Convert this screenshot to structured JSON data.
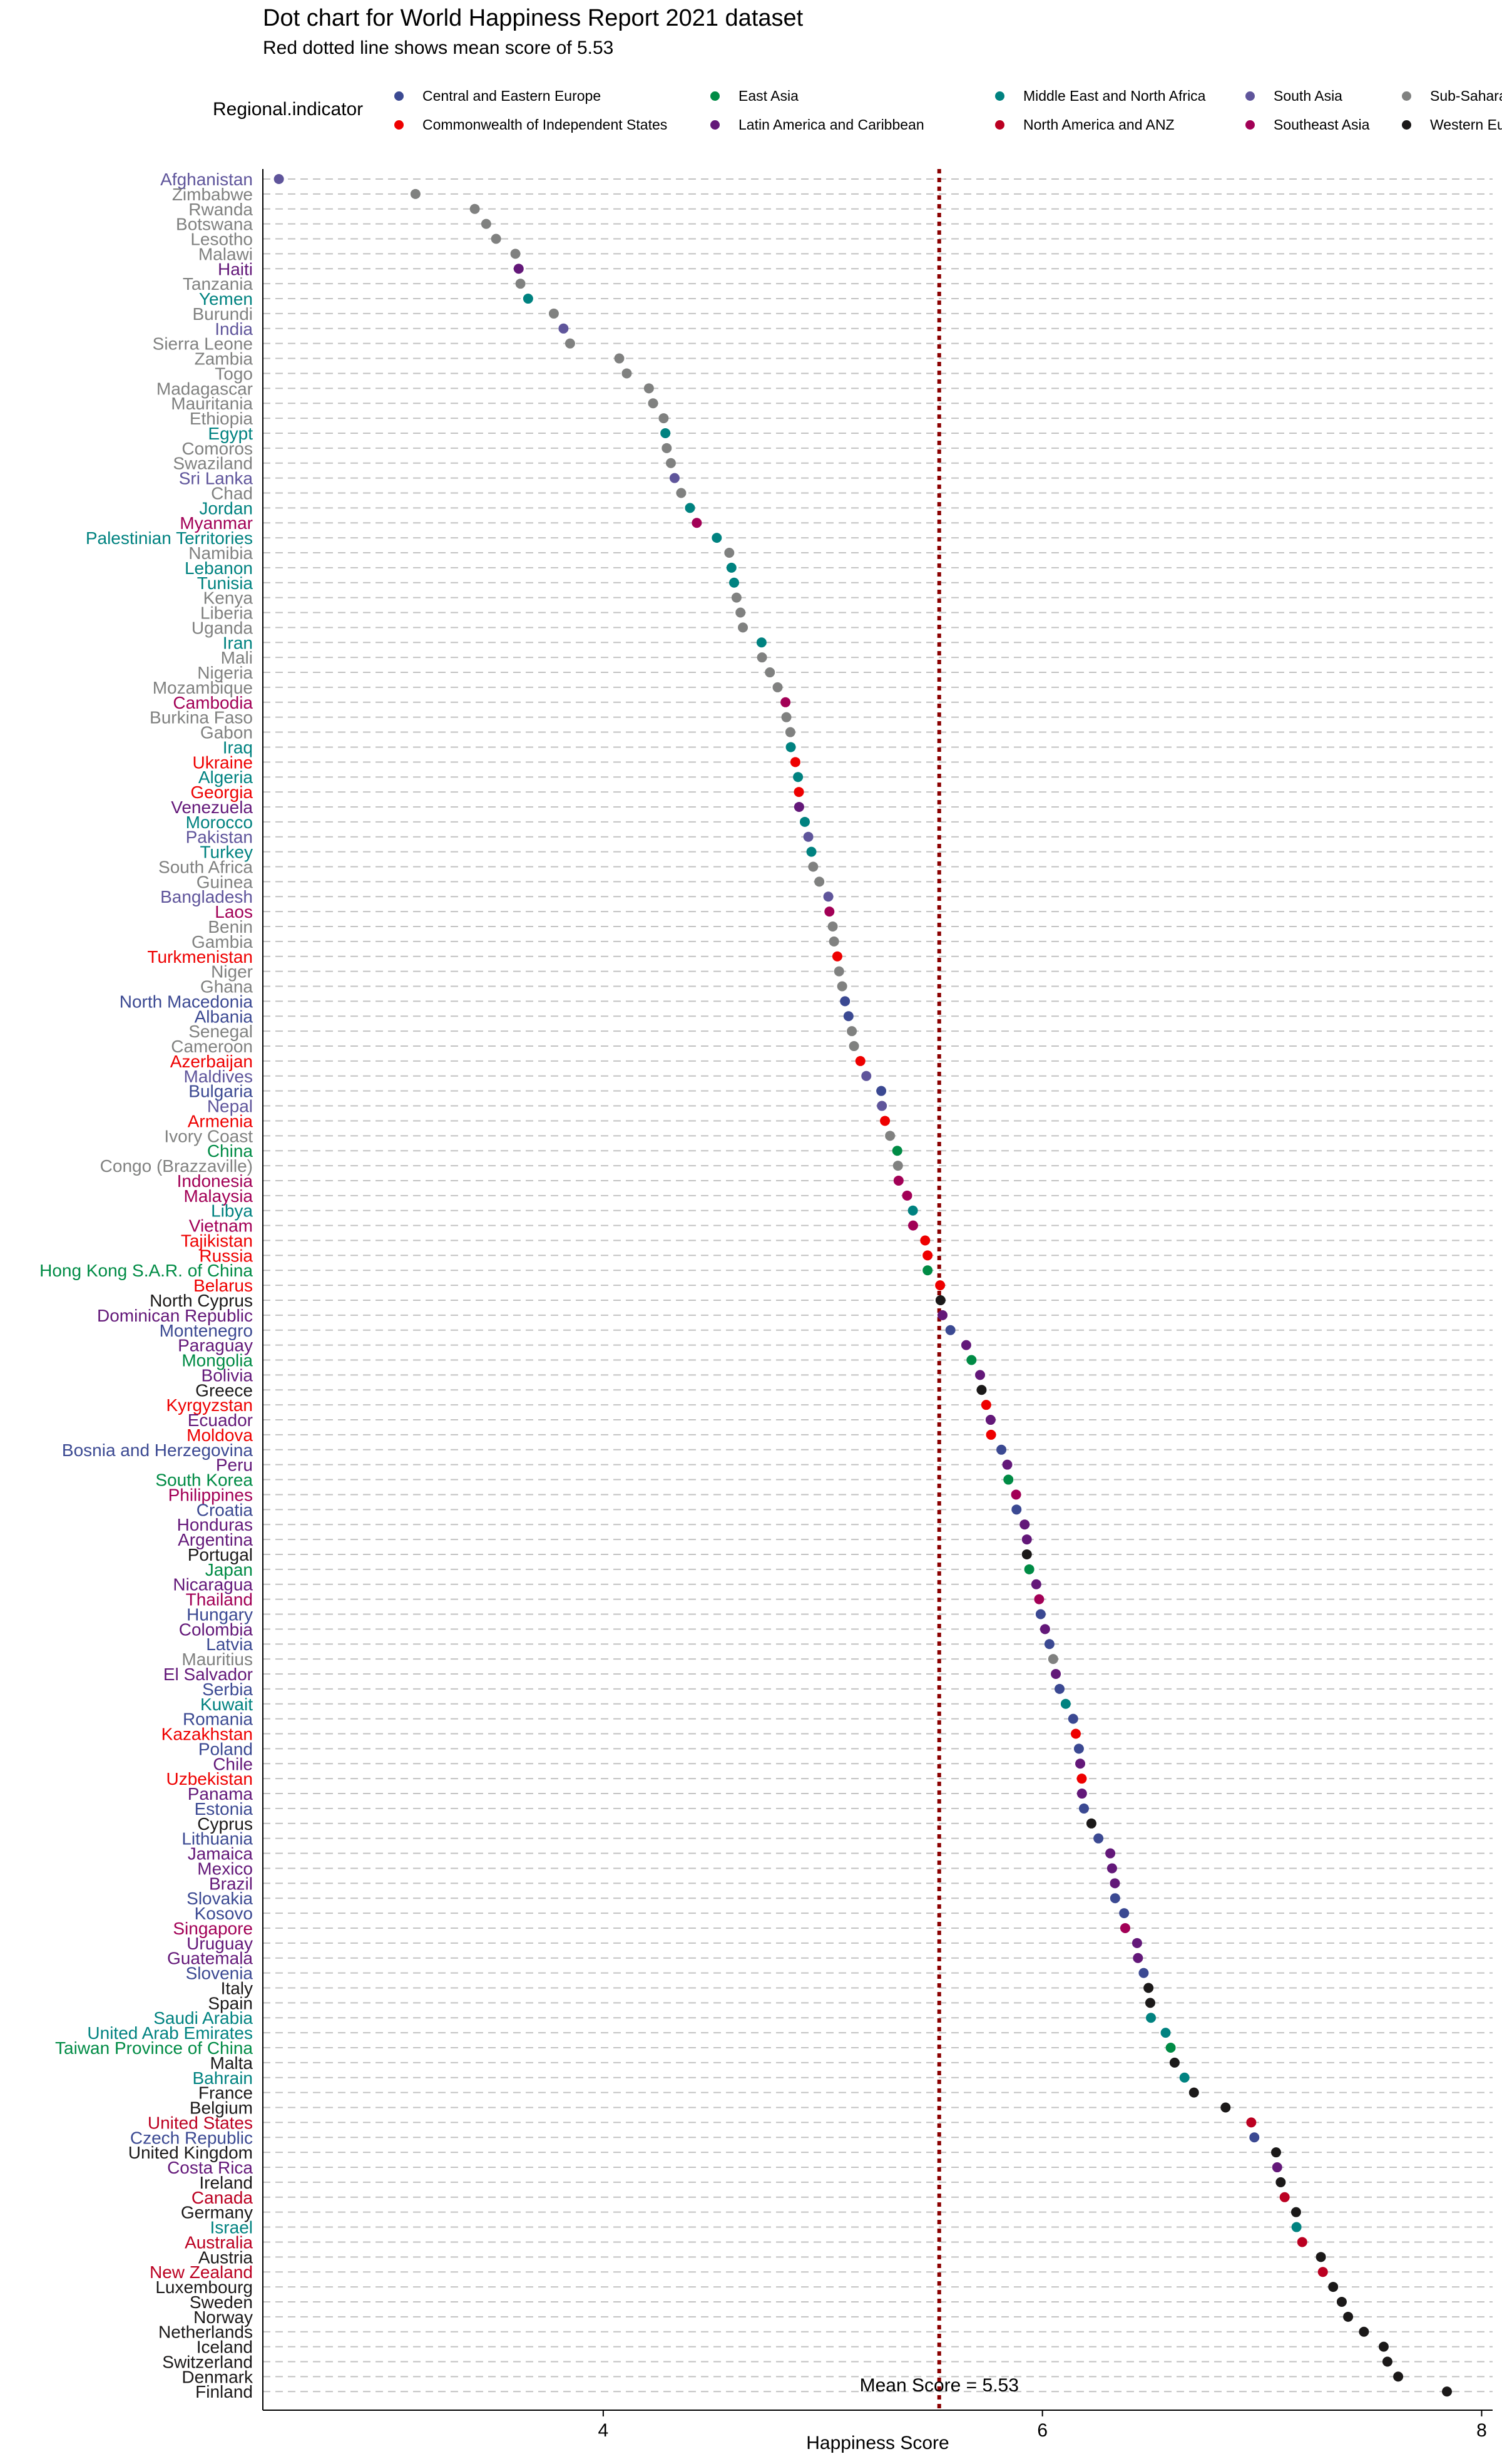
{
  "chart_data": {
    "type": "scatter",
    "title": "Dot chart for World Happiness Report 2021 dataset",
    "subtitle": "Red dotted line shows mean score of 5.53",
    "xlabel": "Happiness Score",
    "ylabel": "",
    "xlim": [
      2.45,
      8.05
    ],
    "xticks": [
      4,
      6,
      8
    ],
    "mean_value": 5.53,
    "mean_label": "Mean Score = 5.53",
    "legend_title": "Regional.indicator",
    "legend": [
      {
        "region": "Central and Eastern Europe",
        "color": "#3B4992"
      },
      {
        "region": "Commonwealth of Independent States",
        "color": "#EE0000"
      },
      {
        "region": "East Asia",
        "color": "#008B45"
      },
      {
        "region": "Latin America and Caribbean",
        "color": "#631879"
      },
      {
        "region": "Middle East and North Africa",
        "color": "#008280"
      },
      {
        "region": "North America and ANZ",
        "color": "#BB0021"
      },
      {
        "region": "South Asia",
        "color": "#5F559B"
      },
      {
        "region": "Southeast Asia",
        "color": "#A20056"
      },
      {
        "region": "Sub-Saharan Africa",
        "color": "#808180"
      },
      {
        "region": "Western Europe",
        "color": "#1B1919"
      }
    ],
    "points": [
      {
        "country": "Finland",
        "score": 7.842,
        "region": "Western Europe"
      },
      {
        "country": "Denmark",
        "score": 7.62,
        "region": "Western Europe"
      },
      {
        "country": "Switzerland",
        "score": 7.571,
        "region": "Western Europe"
      },
      {
        "country": "Iceland",
        "score": 7.554,
        "region": "Western Europe"
      },
      {
        "country": "Netherlands",
        "score": 7.464,
        "region": "Western Europe"
      },
      {
        "country": "Norway",
        "score": 7.392,
        "region": "Western Europe"
      },
      {
        "country": "Sweden",
        "score": 7.363,
        "region": "Western Europe"
      },
      {
        "country": "Luxembourg",
        "score": 7.324,
        "region": "Western Europe"
      },
      {
        "country": "New Zealand",
        "score": 7.277,
        "region": "North America and ANZ"
      },
      {
        "country": "Austria",
        "score": 7.268,
        "region": "Western Europe"
      },
      {
        "country": "Australia",
        "score": 7.183,
        "region": "North America and ANZ"
      },
      {
        "country": "Israel",
        "score": 7.157,
        "region": "Middle East and North Africa"
      },
      {
        "country": "Germany",
        "score": 7.155,
        "region": "Western Europe"
      },
      {
        "country": "Canada",
        "score": 7.103,
        "region": "North America and ANZ"
      },
      {
        "country": "Ireland",
        "score": 7.085,
        "region": "Western Europe"
      },
      {
        "country": "Costa Rica",
        "score": 7.069,
        "region": "Latin America and Caribbean"
      },
      {
        "country": "United Kingdom",
        "score": 7.064,
        "region": "Western Europe"
      },
      {
        "country": "Czech Republic",
        "score": 6.965,
        "region": "Central and Eastern Europe"
      },
      {
        "country": "United States",
        "score": 6.951,
        "region": "North America and ANZ"
      },
      {
        "country": "Belgium",
        "score": 6.834,
        "region": "Western Europe"
      },
      {
        "country": "France",
        "score": 6.69,
        "region": "Western Europe"
      },
      {
        "country": "Bahrain",
        "score": 6.647,
        "region": "Middle East and North Africa"
      },
      {
        "country": "Malta",
        "score": 6.602,
        "region": "Western Europe"
      },
      {
        "country": "Taiwan Province of China",
        "score": 6.584,
        "region": "East Asia"
      },
      {
        "country": "United Arab Emirates",
        "score": 6.561,
        "region": "Middle East and North Africa"
      },
      {
        "country": "Saudi Arabia",
        "score": 6.494,
        "region": "Middle East and North Africa"
      },
      {
        "country": "Spain",
        "score": 6.491,
        "region": "Western Europe"
      },
      {
        "country": "Italy",
        "score": 6.483,
        "region": "Western Europe"
      },
      {
        "country": "Slovenia",
        "score": 6.461,
        "region": "Central and Eastern Europe"
      },
      {
        "country": "Guatemala",
        "score": 6.435,
        "region": "Latin America and Caribbean"
      },
      {
        "country": "Uruguay",
        "score": 6.431,
        "region": "Latin America and Caribbean"
      },
      {
        "country": "Singapore",
        "score": 6.377,
        "region": "Southeast Asia"
      },
      {
        "country": "Kosovo",
        "score": 6.372,
        "region": "Central and Eastern Europe"
      },
      {
        "country": "Slovakia",
        "score": 6.331,
        "region": "Central and Eastern Europe"
      },
      {
        "country": "Brazil",
        "score": 6.33,
        "region": "Latin America and Caribbean"
      },
      {
        "country": "Mexico",
        "score": 6.317,
        "region": "Latin America and Caribbean"
      },
      {
        "country": "Jamaica",
        "score": 6.309,
        "region": "Latin America and Caribbean"
      },
      {
        "country": "Lithuania",
        "score": 6.255,
        "region": "Central and Eastern Europe"
      },
      {
        "country": "Cyprus",
        "score": 6.223,
        "region": "Western Europe"
      },
      {
        "country": "Estonia",
        "score": 6.189,
        "region": "Central and Eastern Europe"
      },
      {
        "country": "Panama",
        "score": 6.18,
        "region": "Latin America and Caribbean"
      },
      {
        "country": "Uzbekistan",
        "score": 6.179,
        "region": "Commonwealth of Independent States"
      },
      {
        "country": "Chile",
        "score": 6.172,
        "region": "Latin America and Caribbean"
      },
      {
        "country": "Poland",
        "score": 6.166,
        "region": "Central and Eastern Europe"
      },
      {
        "country": "Kazakhstan",
        "score": 6.152,
        "region": "Commonwealth of Independent States"
      },
      {
        "country": "Romania",
        "score": 6.14,
        "region": "Central and Eastern Europe"
      },
      {
        "country": "Kuwait",
        "score": 6.106,
        "region": "Middle East and North Africa"
      },
      {
        "country": "Serbia",
        "score": 6.078,
        "region": "Central and Eastern Europe"
      },
      {
        "country": "El Salvador",
        "score": 6.061,
        "region": "Latin America and Caribbean"
      },
      {
        "country": "Mauritius",
        "score": 6.049,
        "region": "Sub-Saharan Africa"
      },
      {
        "country": "Latvia",
        "score": 6.032,
        "region": "Central and Eastern Europe"
      },
      {
        "country": "Colombia",
        "score": 6.012,
        "region": "Latin America and Caribbean"
      },
      {
        "country": "Hungary",
        "score": 5.992,
        "region": "Central and Eastern Europe"
      },
      {
        "country": "Thailand",
        "score": 5.985,
        "region": "Southeast Asia"
      },
      {
        "country": "Nicaragua",
        "score": 5.972,
        "region": "Latin America and Caribbean"
      },
      {
        "country": "Japan",
        "score": 5.94,
        "region": "East Asia"
      },
      {
        "country": "Argentina",
        "score": 5.929,
        "region": "Latin America and Caribbean"
      },
      {
        "country": "Portugal",
        "score": 5.929,
        "region": "Western Europe"
      },
      {
        "country": "Honduras",
        "score": 5.919,
        "region": "Latin America and Caribbean"
      },
      {
        "country": "Croatia",
        "score": 5.882,
        "region": "Central and Eastern Europe"
      },
      {
        "country": "Philippines",
        "score": 5.88,
        "region": "Southeast Asia"
      },
      {
        "country": "South Korea",
        "score": 5.845,
        "region": "East Asia"
      },
      {
        "country": "Peru",
        "score": 5.84,
        "region": "Latin America and Caribbean"
      },
      {
        "country": "Bosnia and Herzegovina",
        "score": 5.813,
        "region": "Central and Eastern Europe"
      },
      {
        "country": "Moldova",
        "score": 5.766,
        "region": "Commonwealth of Independent States"
      },
      {
        "country": "Ecuador",
        "score": 5.764,
        "region": "Latin America and Caribbean"
      },
      {
        "country": "Kyrgyzstan",
        "score": 5.744,
        "region": "Commonwealth of Independent States"
      },
      {
        "country": "Greece",
        "score": 5.723,
        "region": "Western Europe"
      },
      {
        "country": "Bolivia",
        "score": 5.716,
        "region": "Latin America and Caribbean"
      },
      {
        "country": "Mongolia",
        "score": 5.677,
        "region": "East Asia"
      },
      {
        "country": "Paraguay",
        "score": 5.653,
        "region": "Latin America and Caribbean"
      },
      {
        "country": "Montenegro",
        "score": 5.581,
        "region": "Central and Eastern Europe"
      },
      {
        "country": "Dominican Republic",
        "score": 5.545,
        "region": "Latin America and Caribbean"
      },
      {
        "country": "North Cyprus",
        "score": 5.536,
        "region": "Western Europe"
      },
      {
        "country": "Belarus",
        "score": 5.534,
        "region": "Commonwealth of Independent States"
      },
      {
        "country": "Russia",
        "score": 5.477,
        "region": "Commonwealth of Independent States"
      },
      {
        "country": "Hong Kong S.A.R. of China",
        "score": 5.477,
        "region": "East Asia"
      },
      {
        "country": "Tajikistan",
        "score": 5.466,
        "region": "Commonwealth of Independent States"
      },
      {
        "country": "Vietnam",
        "score": 5.411,
        "region": "Southeast Asia"
      },
      {
        "country": "Libya",
        "score": 5.41,
        "region": "Middle East and North Africa"
      },
      {
        "country": "Malaysia",
        "score": 5.384,
        "region": "Southeast Asia"
      },
      {
        "country": "Indonesia",
        "score": 5.345,
        "region": "Southeast Asia"
      },
      {
        "country": "Congo (Brazzaville)",
        "score": 5.342,
        "region": "Sub-Saharan Africa"
      },
      {
        "country": "China",
        "score": 5.339,
        "region": "East Asia"
      },
      {
        "country": "Ivory Coast",
        "score": 5.306,
        "region": "Sub-Saharan Africa"
      },
      {
        "country": "Armenia",
        "score": 5.283,
        "region": "Commonwealth of Independent States"
      },
      {
        "country": "Nepal",
        "score": 5.269,
        "region": "South Asia"
      },
      {
        "country": "Bulgaria",
        "score": 5.266,
        "region": "Central and Eastern Europe"
      },
      {
        "country": "Maldives",
        "score": 5.198,
        "region": "South Asia"
      },
      {
        "country": "Azerbaijan",
        "score": 5.171,
        "region": "Commonwealth of Independent States"
      },
      {
        "country": "Cameroon",
        "score": 5.142,
        "region": "Sub-Saharan Africa"
      },
      {
        "country": "Senegal",
        "score": 5.132,
        "region": "Sub-Saharan Africa"
      },
      {
        "country": "Albania",
        "score": 5.117,
        "region": "Central and Eastern Europe"
      },
      {
        "country": "North Macedonia",
        "score": 5.101,
        "region": "Central and Eastern Europe"
      },
      {
        "country": "Ghana",
        "score": 5.088,
        "region": "Sub-Saharan Africa"
      },
      {
        "country": "Niger",
        "score": 5.074,
        "region": "Sub-Saharan Africa"
      },
      {
        "country": "Turkmenistan",
        "score": 5.066,
        "region": "Commonwealth of Independent States"
      },
      {
        "country": "Gambia",
        "score": 5.051,
        "region": "Sub-Saharan Africa"
      },
      {
        "country": "Benin",
        "score": 5.045,
        "region": "Sub-Saharan Africa"
      },
      {
        "country": "Laos",
        "score": 5.03,
        "region": "Southeast Asia"
      },
      {
        "country": "Bangladesh",
        "score": 5.025,
        "region": "South Asia"
      },
      {
        "country": "Guinea",
        "score": 4.984,
        "region": "Sub-Saharan Africa"
      },
      {
        "country": "South Africa",
        "score": 4.956,
        "region": "Sub-Saharan Africa"
      },
      {
        "country": "Turkey",
        "score": 4.948,
        "region": "Middle East and North Africa"
      },
      {
        "country": "Pakistan",
        "score": 4.934,
        "region": "South Asia"
      },
      {
        "country": "Morocco",
        "score": 4.918,
        "region": "Middle East and North Africa"
      },
      {
        "country": "Venezuela",
        "score": 4.892,
        "region": "Latin America and Caribbean"
      },
      {
        "country": "Georgia",
        "score": 4.891,
        "region": "Commonwealth of Independent States"
      },
      {
        "country": "Algeria",
        "score": 4.887,
        "region": "Middle East and North Africa"
      },
      {
        "country": "Ukraine",
        "score": 4.875,
        "region": "Commonwealth of Independent States"
      },
      {
        "country": "Iraq",
        "score": 4.854,
        "region": "Middle East and North Africa"
      },
      {
        "country": "Gabon",
        "score": 4.852,
        "region": "Sub-Saharan Africa"
      },
      {
        "country": "Burkina Faso",
        "score": 4.834,
        "region": "Sub-Saharan Africa"
      },
      {
        "country": "Cambodia",
        "score": 4.83,
        "region": "Southeast Asia"
      },
      {
        "country": "Mozambique",
        "score": 4.794,
        "region": "Sub-Saharan Africa"
      },
      {
        "country": "Nigeria",
        "score": 4.759,
        "region": "Sub-Saharan Africa"
      },
      {
        "country": "Mali",
        "score": 4.723,
        "region": "Sub-Saharan Africa"
      },
      {
        "country": "Iran",
        "score": 4.721,
        "region": "Middle East and North Africa"
      },
      {
        "country": "Uganda",
        "score": 4.636,
        "region": "Sub-Saharan Africa"
      },
      {
        "country": "Liberia",
        "score": 4.625,
        "region": "Sub-Saharan Africa"
      },
      {
        "country": "Kenya",
        "score": 4.607,
        "region": "Sub-Saharan Africa"
      },
      {
        "country": "Tunisia",
        "score": 4.596,
        "region": "Middle East and North Africa"
      },
      {
        "country": "Lebanon",
        "score": 4.584,
        "region": "Middle East and North Africa"
      },
      {
        "country": "Namibia",
        "score": 4.574,
        "region": "Sub-Saharan Africa"
      },
      {
        "country": "Palestinian Territories",
        "score": 4.517,
        "region": "Middle East and North Africa"
      },
      {
        "country": "Myanmar",
        "score": 4.426,
        "region": "Southeast Asia"
      },
      {
        "country": "Jordan",
        "score": 4.395,
        "region": "Middle East and North Africa"
      },
      {
        "country": "Chad",
        "score": 4.355,
        "region": "Sub-Saharan Africa"
      },
      {
        "country": "Sri Lanka",
        "score": 4.325,
        "region": "South Asia"
      },
      {
        "country": "Swaziland",
        "score": 4.308,
        "region": "Sub-Saharan Africa"
      },
      {
        "country": "Comoros",
        "score": 4.289,
        "region": "Sub-Saharan Africa"
      },
      {
        "country": "Egypt",
        "score": 4.283,
        "region": "Middle East and North Africa"
      },
      {
        "country": "Ethiopia",
        "score": 4.275,
        "region": "Sub-Saharan Africa"
      },
      {
        "country": "Mauritania",
        "score": 4.227,
        "region": "Sub-Saharan Africa"
      },
      {
        "country": "Madagascar",
        "score": 4.208,
        "region": "Sub-Saharan Africa"
      },
      {
        "country": "Togo",
        "score": 4.107,
        "region": "Sub-Saharan Africa"
      },
      {
        "country": "Zambia",
        "score": 4.073,
        "region": "Sub-Saharan Africa"
      },
      {
        "country": "Sierra Leone",
        "score": 3.849,
        "region": "Sub-Saharan Africa"
      },
      {
        "country": "India",
        "score": 3.819,
        "region": "South Asia"
      },
      {
        "country": "Burundi",
        "score": 3.775,
        "region": "Sub-Saharan Africa"
      },
      {
        "country": "Yemen",
        "score": 3.658,
        "region": "Middle East and North Africa"
      },
      {
        "country": "Tanzania",
        "score": 3.623,
        "region": "Sub-Saharan Africa"
      },
      {
        "country": "Haiti",
        "score": 3.615,
        "region": "Latin America and Caribbean"
      },
      {
        "country": "Malawi",
        "score": 3.6,
        "region": "Sub-Saharan Africa"
      },
      {
        "country": "Lesotho",
        "score": 3.512,
        "region": "Sub-Saharan Africa"
      },
      {
        "country": "Botswana",
        "score": 3.467,
        "region": "Sub-Saharan Africa"
      },
      {
        "country": "Rwanda",
        "score": 3.415,
        "region": "Sub-Saharan Africa"
      },
      {
        "country": "Zimbabwe",
        "score": 3.145,
        "region": "Sub-Saharan Africa"
      },
      {
        "country": "Afghanistan",
        "score": 2.523,
        "region": "South Asia"
      }
    ]
  }
}
